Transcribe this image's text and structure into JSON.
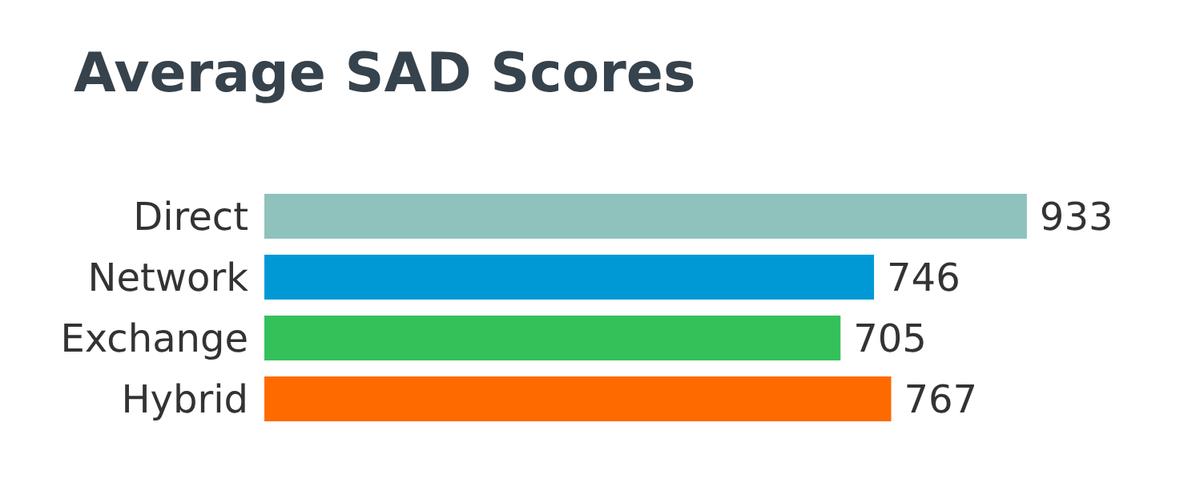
{
  "chart_data": {
    "type": "bar",
    "orientation": "horizontal",
    "title": "Average SAD Scores",
    "categories": [
      "Direct",
      "Network",
      "Exchange",
      "Hybrid"
    ],
    "values": [
      933,
      746,
      705,
      767
    ],
    "colors": [
      "#8fc1bd",
      "#0099d6",
      "#35c159",
      "#ff6a00"
    ],
    "data_labels": true,
    "grid": false,
    "legend": false
  }
}
